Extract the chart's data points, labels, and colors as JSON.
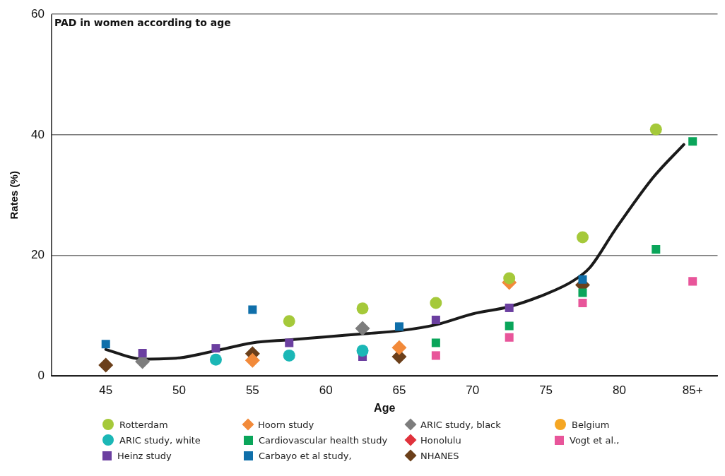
{
  "chart_data": {
    "type": "scatter",
    "title": "PAD in women according to age",
    "xlabel": "Age",
    "ylabel": "Rates (%)",
    "xlim": [
      41.3,
      86.7
    ],
    "xticks": [
      45,
      50,
      55,
      60,
      65,
      70,
      75,
      80,
      {
        "value": 85,
        "label": "85+"
      }
    ],
    "ylim": [
      0,
      60
    ],
    "yticks": [
      0,
      20,
      40,
      60
    ],
    "grid": "y",
    "legend": "bottom",
    "series": [
      {
        "name": "Rotterdam",
        "color": "#a5c93a",
        "marker": "circle",
        "x": [
          57.5,
          62.5,
          67.5,
          72.5,
          77.5,
          82.5
        ],
        "values": [
          9.1,
          11.2,
          12.1,
          16.2,
          23.0,
          40.9
        ]
      },
      {
        "name": "ARIC study, white",
        "color": "#1bb7b6",
        "marker": "circle",
        "x": [
          52.5,
          57.5,
          62.5
        ],
        "values": [
          2.7,
          3.4,
          4.2
        ]
      },
      {
        "name": "Heinz study",
        "color": "#6b3fa0",
        "marker": "square",
        "x": [
          47.5,
          52.5,
          57.5,
          62.5,
          67.5,
          72.5
        ],
        "values": [
          3.8,
          4.6,
          5.5,
          3.2,
          9.3,
          11.3
        ]
      },
      {
        "name": "Hoorn study",
        "color": "#f28a3a",
        "marker": "diamond",
        "x": [
          55,
          65,
          72.5
        ],
        "values": [
          2.6,
          4.7,
          15.5
        ]
      },
      {
        "name": "Cardiovascular health study",
        "color": "#0aa55a",
        "marker": "square",
        "x": [
          67.5,
          72.5,
          77.5,
          82.5,
          85
        ],
        "values": [
          5.5,
          8.3,
          13.8,
          21.0,
          38.9
        ]
      },
      {
        "name": "Carbayo et al study,",
        "color": "#0f6faa",
        "marker": "square",
        "x": [
          45,
          55,
          65,
          77.5
        ],
        "values": [
          5.3,
          11.0,
          8.2,
          16.0
        ]
      },
      {
        "name": "ARIC study, black",
        "color": "#7d7d7d",
        "marker": "diamond",
        "x": [
          47.5,
          62.5
        ],
        "values": [
          2.4,
          7.9
        ]
      },
      {
        "name": "Honolulu",
        "color": "#e0323c",
        "marker": "diamond"
      },
      {
        "name": "NHANES",
        "color": "#6b3f1a",
        "marker": "diamond",
        "x": [
          45,
          55,
          65,
          77.5
        ],
        "values": [
          1.8,
          3.7,
          3.2,
          15.1
        ]
      },
      {
        "name": "Belgium",
        "color": "#f5a623",
        "marker": "circle"
      },
      {
        "name": "Vogt et al.,",
        "color": "#e8559a",
        "marker": "square",
        "x": [
          67.5,
          72.5,
          77.5,
          85
        ],
        "values": [
          3.4,
          6.4,
          12.1,
          15.7
        ]
      },
      {
        "type": "line",
        "color": "#1a1a1a",
        "marker": "none",
        "x": [
          45,
          47.5,
          50,
          52.5,
          55,
          57.5,
          60,
          62.5,
          65,
          67.5,
          70,
          72.5,
          75,
          76.8,
          78,
          79.7,
          82.3,
          84.4
        ],
        "values": [
          4.4,
          2.8,
          3.0,
          4.2,
          5.5,
          6.0,
          6.5,
          7.0,
          7.5,
          8.5,
          10.3,
          11.5,
          13.6,
          15.7,
          18.0,
          24.2,
          32.9,
          38.4
        ]
      }
    ]
  }
}
